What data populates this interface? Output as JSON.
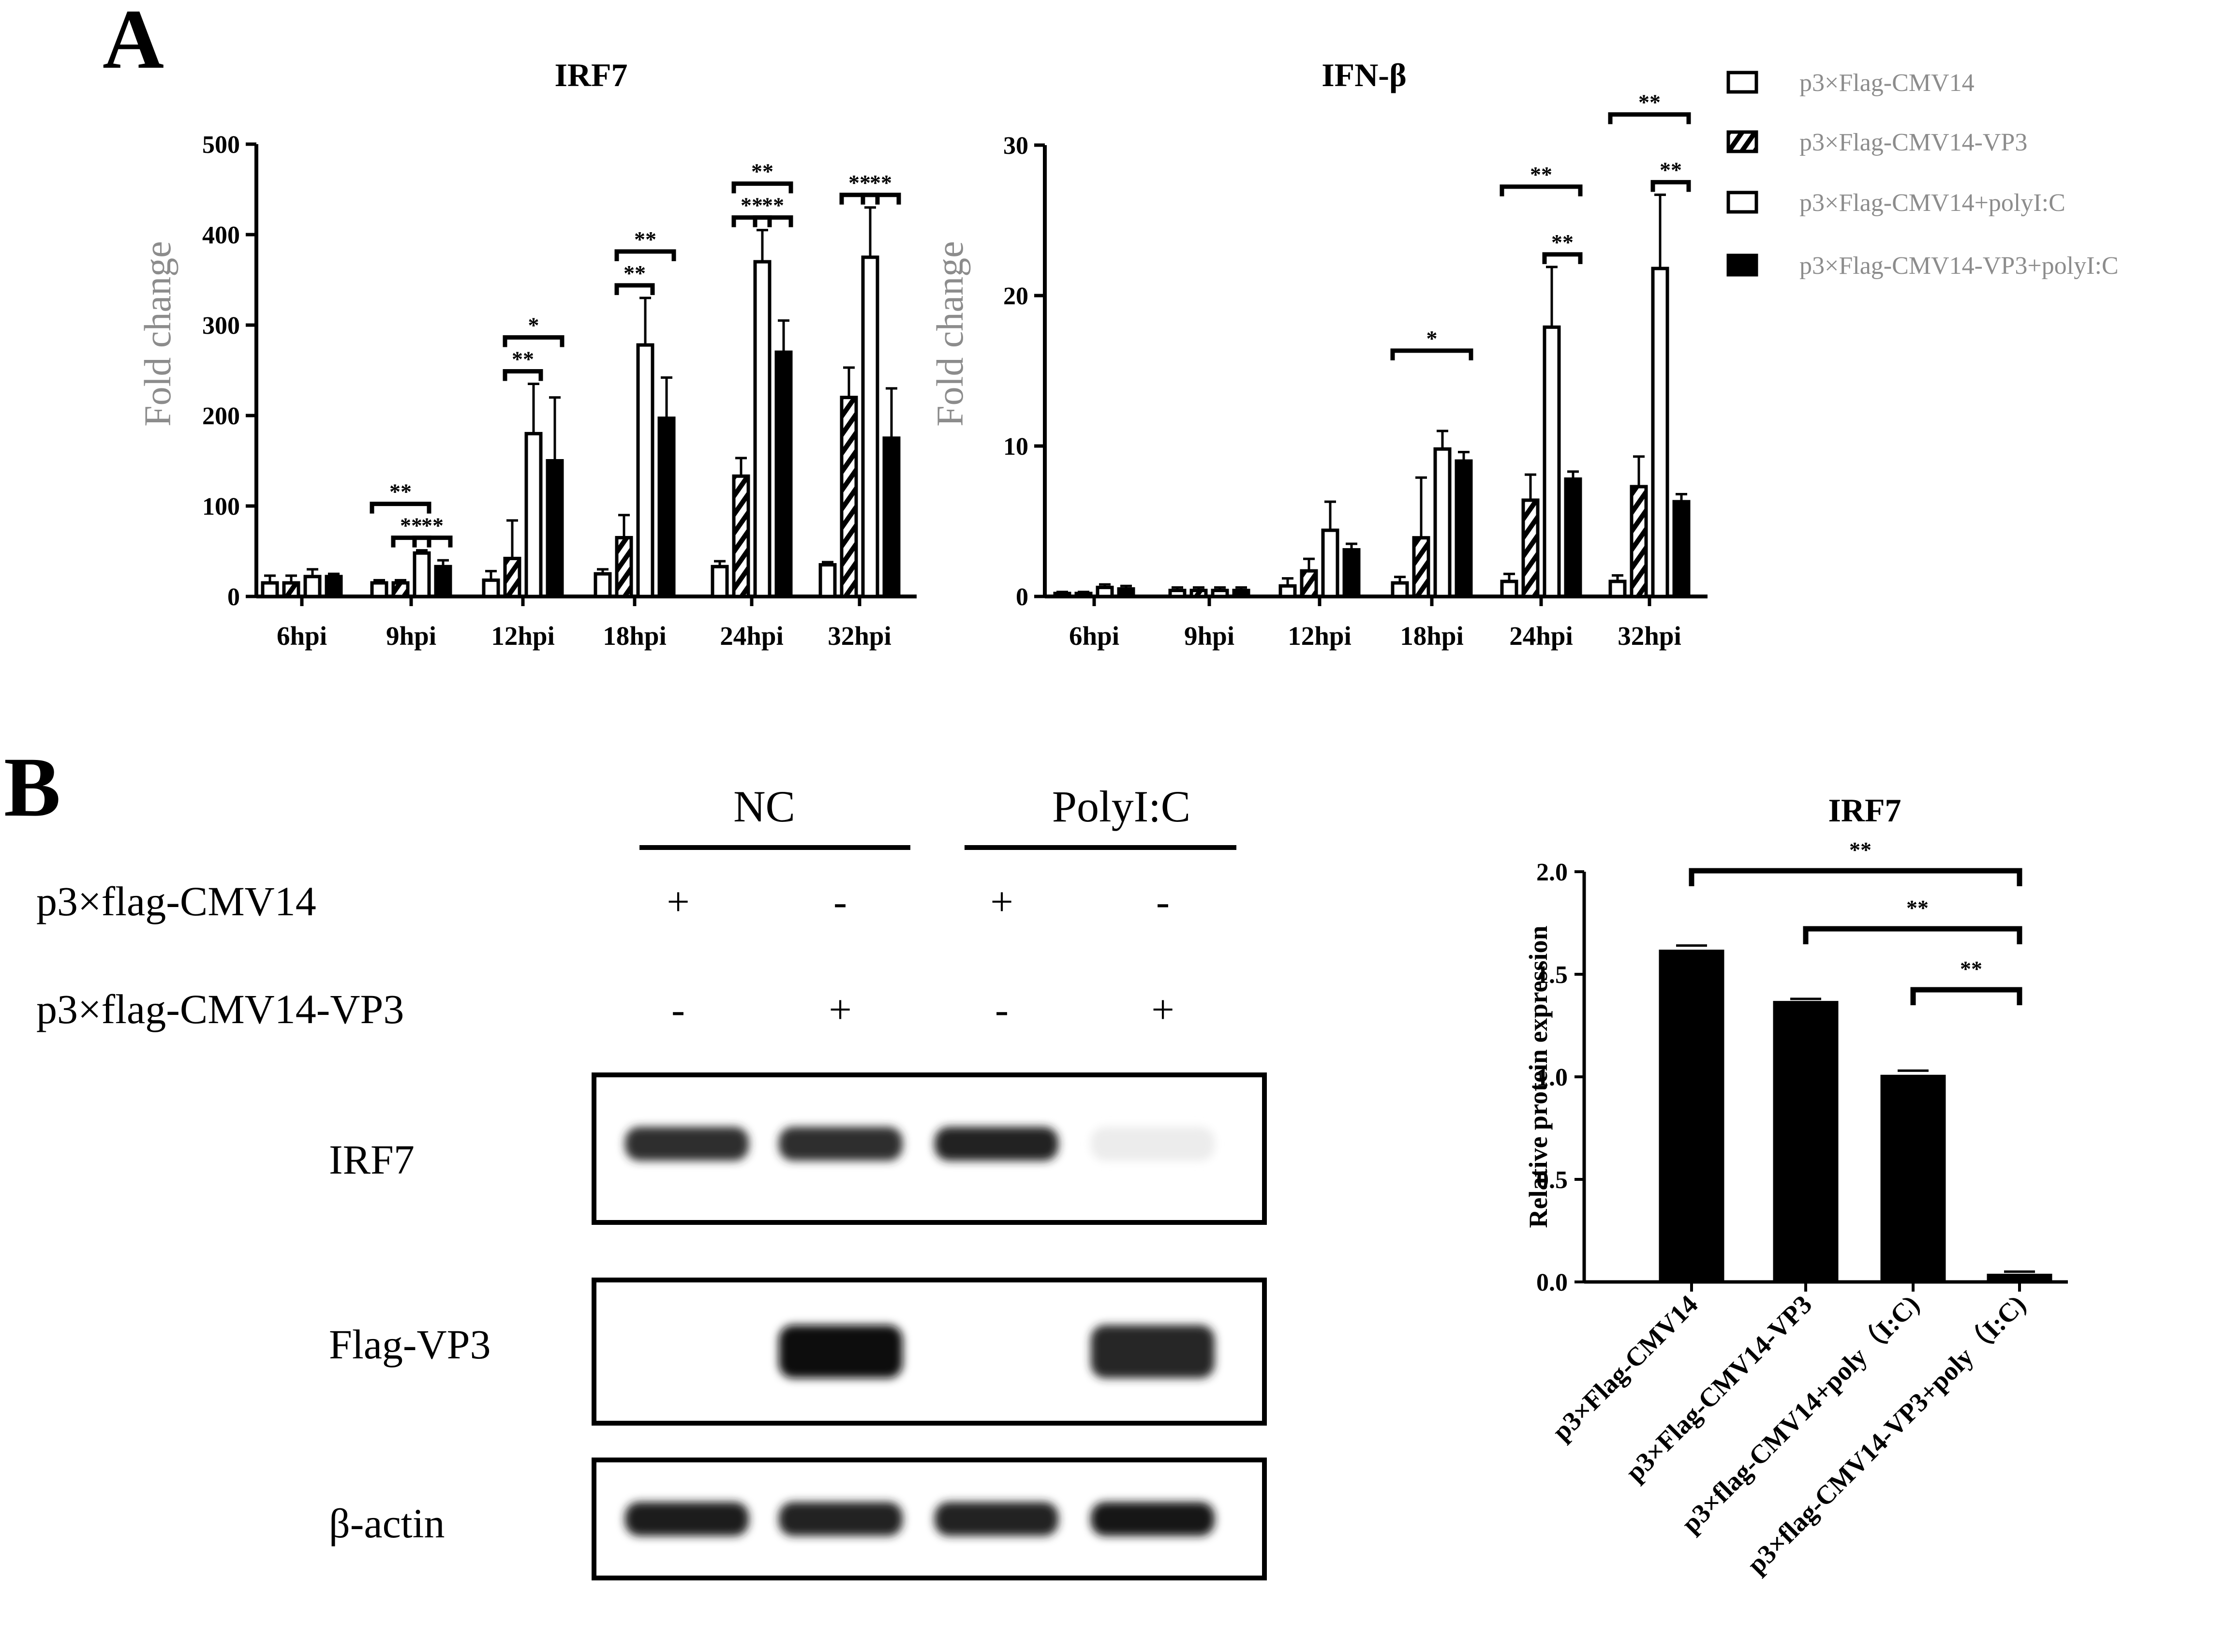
{
  "panels": {
    "a": "A",
    "b": "B"
  },
  "colors": {
    "bar_outline": "#000000",
    "axis_label": "#8c8c8c"
  },
  "legend": [
    {
      "label": "p3×Flag-CMV14",
      "pattern": "open"
    },
    {
      "label": "p3×Flag-CMV14-VP3",
      "pattern": "hatched"
    },
    {
      "label": "p3×Flag-CMV14+polyI:C",
      "pattern": "open"
    },
    {
      "label": "p3×Flag-CMV14-VP3+polyI:C",
      "pattern": "filled"
    }
  ],
  "chart_data": [
    {
      "id": "irf7_qpcr",
      "type": "bar",
      "title": "IRF7",
      "ylabel": "Fold change",
      "xlabel": "",
      "ylim": [
        0,
        500
      ],
      "yticks": [
        0,
        100,
        200,
        300,
        400,
        500
      ],
      "categories": [
        "6hpi",
        "9hpi",
        "12hpi",
        "18hpi",
        "24hpi",
        "32hpi"
      ],
      "series": [
        {
          "name": "p3×Flag-CMV14",
          "values": [
            15,
            15,
            18,
            25,
            33,
            35
          ],
          "errors": [
            8,
            3,
            10,
            5,
            6,
            3
          ]
        },
        {
          "name": "p3×Flag-CMV14-VP3",
          "values": [
            15,
            15,
            42,
            65,
            133,
            220
          ],
          "errors": [
            8,
            3,
            42,
            25,
            20,
            33
          ]
        },
        {
          "name": "p3×Flag-CMV14+polyI:C",
          "values": [
            22,
            48,
            180,
            278,
            370,
            375
          ],
          "errors": [
            8,
            3,
            55,
            52,
            35,
            55
          ]
        },
        {
          "name": "p3×Flag-CMV14-VP3+polyI:C",
          "values": [
            22,
            33,
            150,
            197,
            270,
            175
          ],
          "errors": [
            3,
            7,
            70,
            45,
            35,
            55
          ]
        }
      ],
      "significance": [
        {
          "category": 1,
          "from": 0,
          "to": 2,
          "label": "**"
        },
        {
          "category": 1,
          "from": 1,
          "to": 2,
          "label": "**"
        },
        {
          "category": 1,
          "from": 2,
          "to": 3,
          "label": "**"
        },
        {
          "category": 2,
          "from": 1,
          "to": 2,
          "label": "**"
        },
        {
          "category": 2,
          "from": 1,
          "to": 3,
          "label": "*"
        },
        {
          "category": 3,
          "from": 1,
          "to": 2,
          "label": "**"
        },
        {
          "category": 3,
          "from": 1,
          "to": 3,
          "label": "**"
        },
        {
          "category": 4,
          "from": 1,
          "to": 2,
          "label": "**"
        },
        {
          "category": 4,
          "from": 1,
          "to": 3,
          "label": "**"
        },
        {
          "category": 4,
          "from": 2,
          "to": 3,
          "label": "**"
        },
        {
          "category": 5,
          "from": 1,
          "to": 2,
          "label": "**"
        },
        {
          "category": 5,
          "from": 2,
          "to": 3,
          "label": "**"
        }
      ]
    },
    {
      "id": "ifnb_qpcr",
      "type": "bar",
      "title": "IFN-β",
      "ylabel": "Fold change",
      "xlabel": "",
      "ylim": [
        0,
        30
      ],
      "yticks": [
        0,
        10,
        20,
        30
      ],
      "categories": [
        "6hpi",
        "9hpi",
        "12hpi",
        "18hpi",
        "24hpi",
        "32hpi"
      ],
      "series": [
        {
          "name": "p3×Flag-CMV14",
          "values": [
            0.2,
            0.4,
            0.7,
            0.9,
            1.0,
            1.0
          ],
          "errors": [
            0.1,
            0.2,
            0.5,
            0.4,
            0.5,
            0.4
          ]
        },
        {
          "name": "p3×Flag-CMV14-VP3",
          "values": [
            0.2,
            0.4,
            1.7,
            3.9,
            6.4,
            7.3
          ],
          "errors": [
            0.1,
            0.2,
            0.8,
            4.0,
            1.7,
            2.0
          ]
        },
        {
          "name": "p3×Flag-CMV14+polyI:C",
          "values": [
            0.6,
            0.4,
            4.4,
            9.8,
            17.9,
            21.8
          ],
          "errors": [
            0.2,
            0.2,
            1.9,
            1.2,
            4.0,
            4.9
          ]
        },
        {
          "name": "p3×Flag-CMV14-VP3+polyI:C",
          "values": [
            0.5,
            0.4,
            3.1,
            9.0,
            7.8,
            6.3
          ],
          "errors": [
            0.2,
            0.2,
            0.4,
            0.6,
            0.5,
            0.5
          ]
        }
      ],
      "significance": [
        {
          "category": 3,
          "from": 0,
          "to": 3,
          "label": "*"
        },
        {
          "category": 4,
          "from": 0,
          "to": 3,
          "label": "**"
        },
        {
          "category": 4,
          "from": 2,
          "to": 3,
          "label": "**"
        },
        {
          "category": 5,
          "from": 0,
          "to": 3,
          "label": "**"
        },
        {
          "category": 5,
          "from": 2,
          "to": 3,
          "label": "**"
        }
      ]
    },
    {
      "id": "irf7_protein",
      "type": "bar",
      "title": "IRF7",
      "ylabel": "Relative protein expression",
      "xlabel": "",
      "ylim": [
        0,
        2.0
      ],
      "yticks": [
        "0.0",
        "0.5",
        "1.0",
        "1.5",
        "2.0"
      ],
      "categories": [
        "p3×Flag-CMV14",
        "p3×Flag-CMV14-VP3",
        "p3×flag-CMV14+poly（I:C)",
        "p3×flag-CMV14-VP3+poly（I:C)"
      ],
      "values": [
        1.62,
        1.37,
        1.01,
        0.04
      ],
      "errors": [
        0.02,
        0.01,
        0.02,
        0.01
      ],
      "significance": [
        {
          "from": 0,
          "to": 3,
          "label": "**"
        },
        {
          "from": 1,
          "to": 3,
          "label": "**"
        },
        {
          "from": 2,
          "to": 3,
          "label": "**"
        }
      ]
    }
  ],
  "western_blot": {
    "groups": [
      "NC",
      "PolyI:C"
    ],
    "conditions": [
      {
        "label": "p3×flag-CMV14",
        "signs": [
          "+",
          "-",
          "+",
          "-"
        ]
      },
      {
        "label": "p3×flag-CMV14-VP3",
        "signs": [
          "-",
          "+",
          "-",
          "+"
        ]
      }
    ],
    "rows": [
      {
        "label": "IRF7",
        "intensities": [
          0.85,
          0.85,
          0.9,
          0.06
        ]
      },
      {
        "label": "Flag-VP3",
        "intensities": [
          0.0,
          1.0,
          0.0,
          0.88
        ]
      },
      {
        "label": "β-actin",
        "intensities": [
          0.92,
          0.9,
          0.9,
          0.95
        ]
      }
    ]
  }
}
